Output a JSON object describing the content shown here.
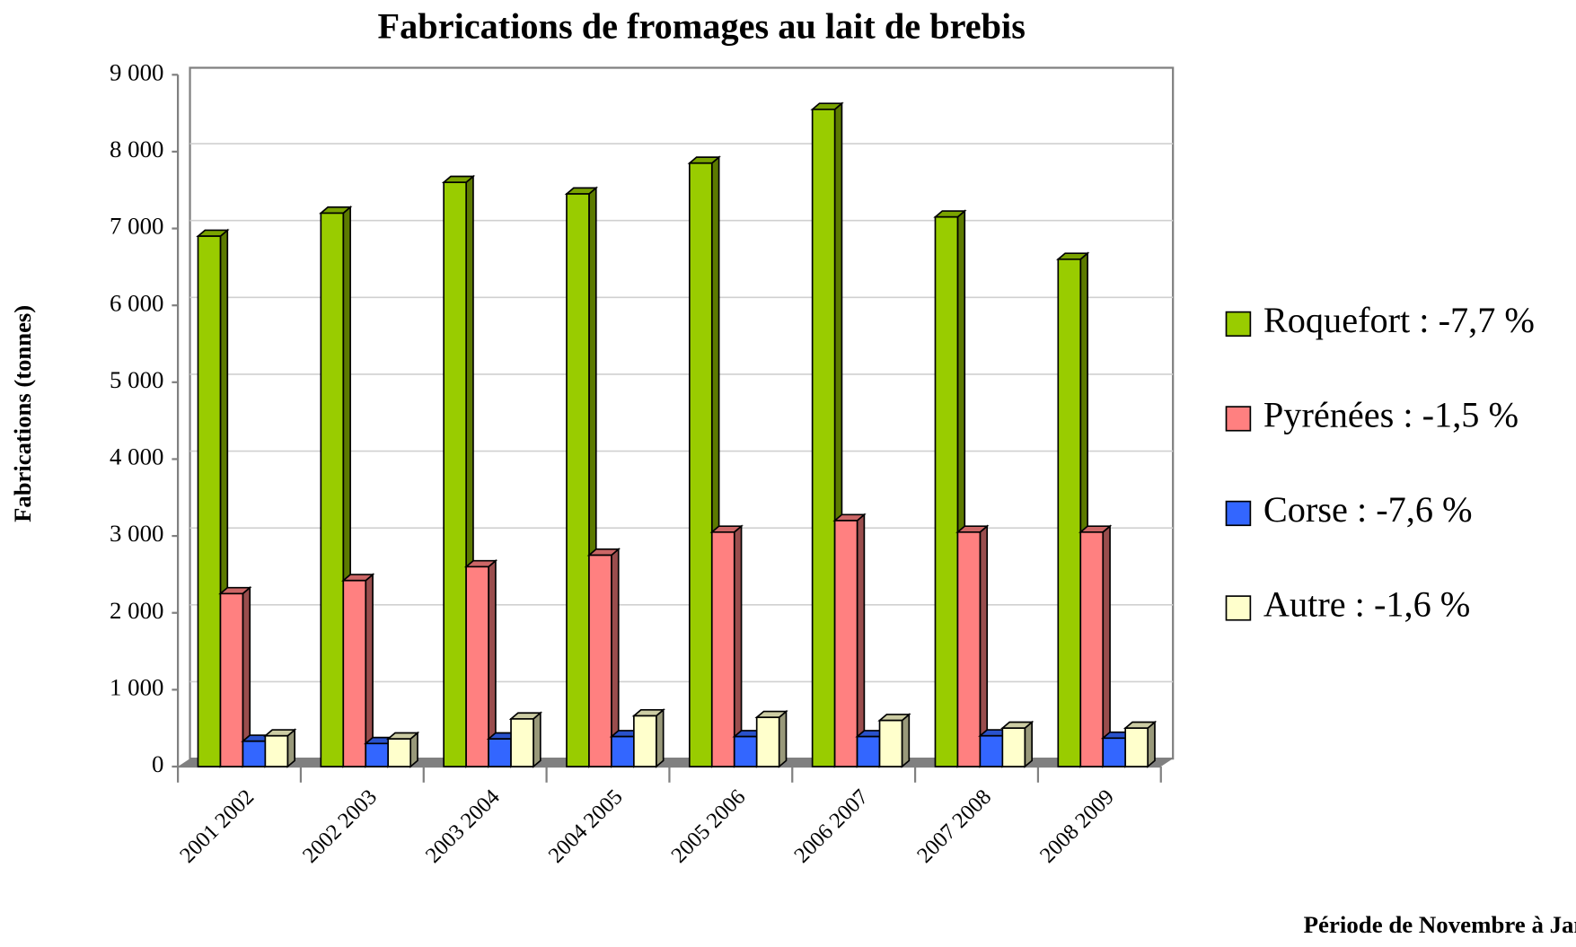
{
  "chart_data": {
    "type": "bar3d",
    "title": "Fabrications de fromages au lait de brebis",
    "ylabel": "Fabrications (tonnes)",
    "xlabel": "Période de Novembre à Janvier",
    "categories": [
      "2001 2002",
      "2002 2003",
      "2003 2004",
      "2004 2005",
      "2005 2006",
      "2006 2007",
      "2007 2008",
      "2008 2009"
    ],
    "series": [
      {
        "name": "Roquefort : -7,7 %",
        "color": "#99cc00",
        "values": [
          6900,
          7200,
          7600,
          7450,
          7850,
          8550,
          7150,
          6600
        ]
      },
      {
        "name": "Pyrénées : -1,5 %",
        "color": "#ff8080",
        "values": [
          2250,
          2420,
          2600,
          2750,
          3050,
          3200,
          3050,
          3050
        ]
      },
      {
        "name": "Corse : -7,6 %",
        "color": "#3366ff",
        "values": [
          330,
          300,
          360,
          390,
          390,
          390,
          400,
          370
        ]
      },
      {
        "name": "Autre : -1,6 %",
        "color": "#ffffcc",
        "values": [
          400,
          360,
          620,
          660,
          640,
          600,
          500,
          500
        ]
      }
    ],
    "ylim": [
      0,
      9000
    ],
    "yticks": [
      0,
      {
        "value": 1000,
        "label": "1 000"
      },
      {
        "value": 2000,
        "label": "2 000"
      },
      {
        "value": 3000,
        "label": "3 000"
      },
      {
        "value": 4000,
        "label": "4 000"
      },
      {
        "value": 5000,
        "label": "5 000"
      },
      {
        "value": 6000,
        "label": "6 000"
      },
      {
        "value": 7000,
        "label": "7 000"
      },
      {
        "value": 8000,
        "label": "8 000"
      },
      {
        "value": 9000,
        "label": "9 000"
      }
    ],
    "grid": true,
    "legend": "right"
  }
}
